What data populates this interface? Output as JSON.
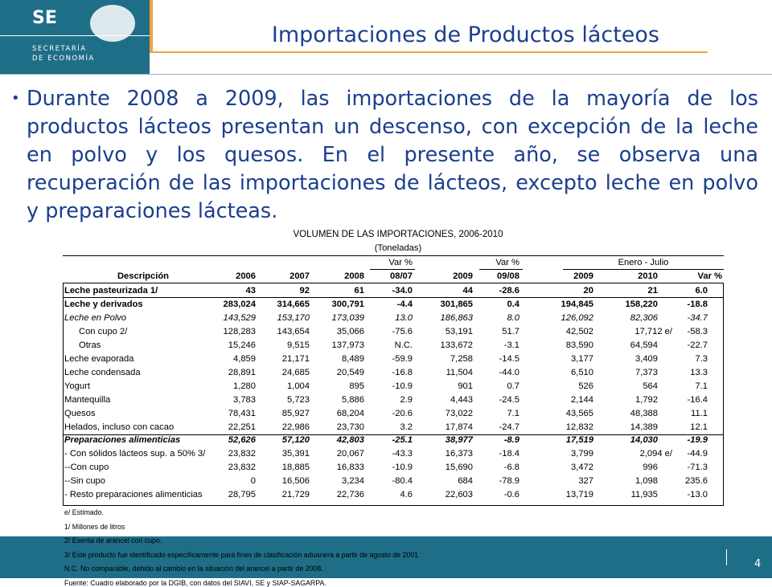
{
  "header": {
    "logo_abbr": "SE",
    "logo_line1": "SECRETARÍA",
    "logo_line2": "DE ECONOMÍA",
    "title": "Importaciones de Productos lácteos"
  },
  "bullet": "Durante 2008 a 2009, las importaciones de la mayoría de los productos lácteos presentan un descenso, con excepción de  la leche en polvo y los quesos. En el presente año, se observa una recuperación de las importaciones de lácteos, excepto leche en polvo y preparaciones lácteas.",
  "table": {
    "title": "VOLUMEN DE LAS IMPORTACIONES, 2006-2010",
    "subtitle": "(Toneladas)",
    "header_top": [
      "Var %",
      "Var %",
      "Enero - Julio"
    ],
    "header": [
      "Descripción",
      "2006",
      "2007",
      "2008",
      "08/07",
      "2009",
      "09/08",
      "2009",
      "2010",
      "Var %"
    ],
    "rows": [
      [
        "Leche pasteurizada 1/",
        "43",
        "92",
        "61",
        "-34.0",
        "44",
        "-28.6",
        "20",
        "21",
        "6.0"
      ],
      [
        "Leche y derivados",
        "283,024",
        "314,665",
        "300,791",
        "-4.4",
        "301,865",
        "0.4",
        "194,845",
        "158,220",
        "-18.8"
      ],
      [
        "Leche en Polvo",
        "143,529",
        "153,170",
        "173,039",
        "13.0",
        "186,863",
        "8.0",
        "126,092",
        "82,306",
        "-34.7"
      ],
      [
        "Con cupo 2/",
        "128,283",
        "143,654",
        "35,066",
        "-75.6",
        "53,191",
        "51.7",
        "42,502",
        "17,712 e/",
        "-58.3"
      ],
      [
        "Otras",
        "15,246",
        "9,515",
        "137,973",
        "N.C.",
        "133,672",
        "-3.1",
        "83,590",
        "64,594",
        "-22.7"
      ],
      [
        "Leche evaporada",
        "4,859",
        "21,171",
        "8,489",
        "-59.9",
        "7,258",
        "-14.5",
        "3,177",
        "3,409",
        "7.3"
      ],
      [
        "Leche condensada",
        "28,891",
        "24,685",
        "20,549",
        "-16.8",
        "11,504",
        "-44.0",
        "6,510",
        "7,373",
        "13.3"
      ],
      [
        "Yogurt",
        "1,280",
        "1,004",
        "895",
        "-10.9",
        "901",
        "0.7",
        "526",
        "564",
        "7.1"
      ],
      [
        "Mantequilla",
        "3,783",
        "5,723",
        "5,886",
        "2.9",
        "4,443",
        "-24.5",
        "2,144",
        "1,792",
        "-16.4"
      ],
      [
        "Quesos",
        "78,431",
        "85,927",
        "68,204",
        "-20.6",
        "73,022",
        "7.1",
        "43,565",
        "48,388",
        "11.1"
      ],
      [
        "Helados, incluso con cacao",
        "22,251",
        "22,986",
        "23,730",
        "3.2",
        "17,874",
        "-24.7",
        "12,832",
        "14,389",
        "12.1"
      ],
      [
        "Preparaciones alimenticias",
        "52,626",
        "57,120",
        "42,803",
        "-25.1",
        "38,977",
        "-8.9",
        "17,519",
        "14,030",
        "-19.9"
      ],
      [
        "- Con sólidos lácteos sup. a 50% 3/",
        "23,832",
        "35,391",
        "20,067",
        "-43.3",
        "16,373",
        "-18.4",
        "3,799",
        "2,094 e/",
        "-44.9"
      ],
      [
        "--Con cupo",
        "23,832",
        "18,885",
        "16,833",
        "-10.9",
        "15,690",
        "-6.8",
        "3,472",
        "996",
        "-71.3"
      ],
      [
        "--Sin cupo",
        "0",
        "16,506",
        "3,234",
        "-80.4",
        "684",
        "-78.9",
        "327",
        "1,098",
        "235.6"
      ],
      [
        "- Resto preparaciones alimenticias",
        "28,795",
        "21,729",
        "22,736",
        "4.6",
        "22,603",
        "-0.6",
        "13,719",
        "11,935",
        "-13.0"
      ]
    ],
    "footnotes": [
      "e/ Estimado.",
      "1/ Millones de litros",
      "2/ Exenta de arancel con cupo.",
      "3/ Este producto fue identificado específicamente para fines de clasificación aduanera a partir de agosto de 2001",
      "N.C. No comparable, debido al cambio en la situación del arancel a partir de 2008.",
      "Fuente: Cuadro elaborado por la DGIB, con datos del SIAVI, SE y SIAP-SAGARPA."
    ]
  },
  "page_number": "4"
}
